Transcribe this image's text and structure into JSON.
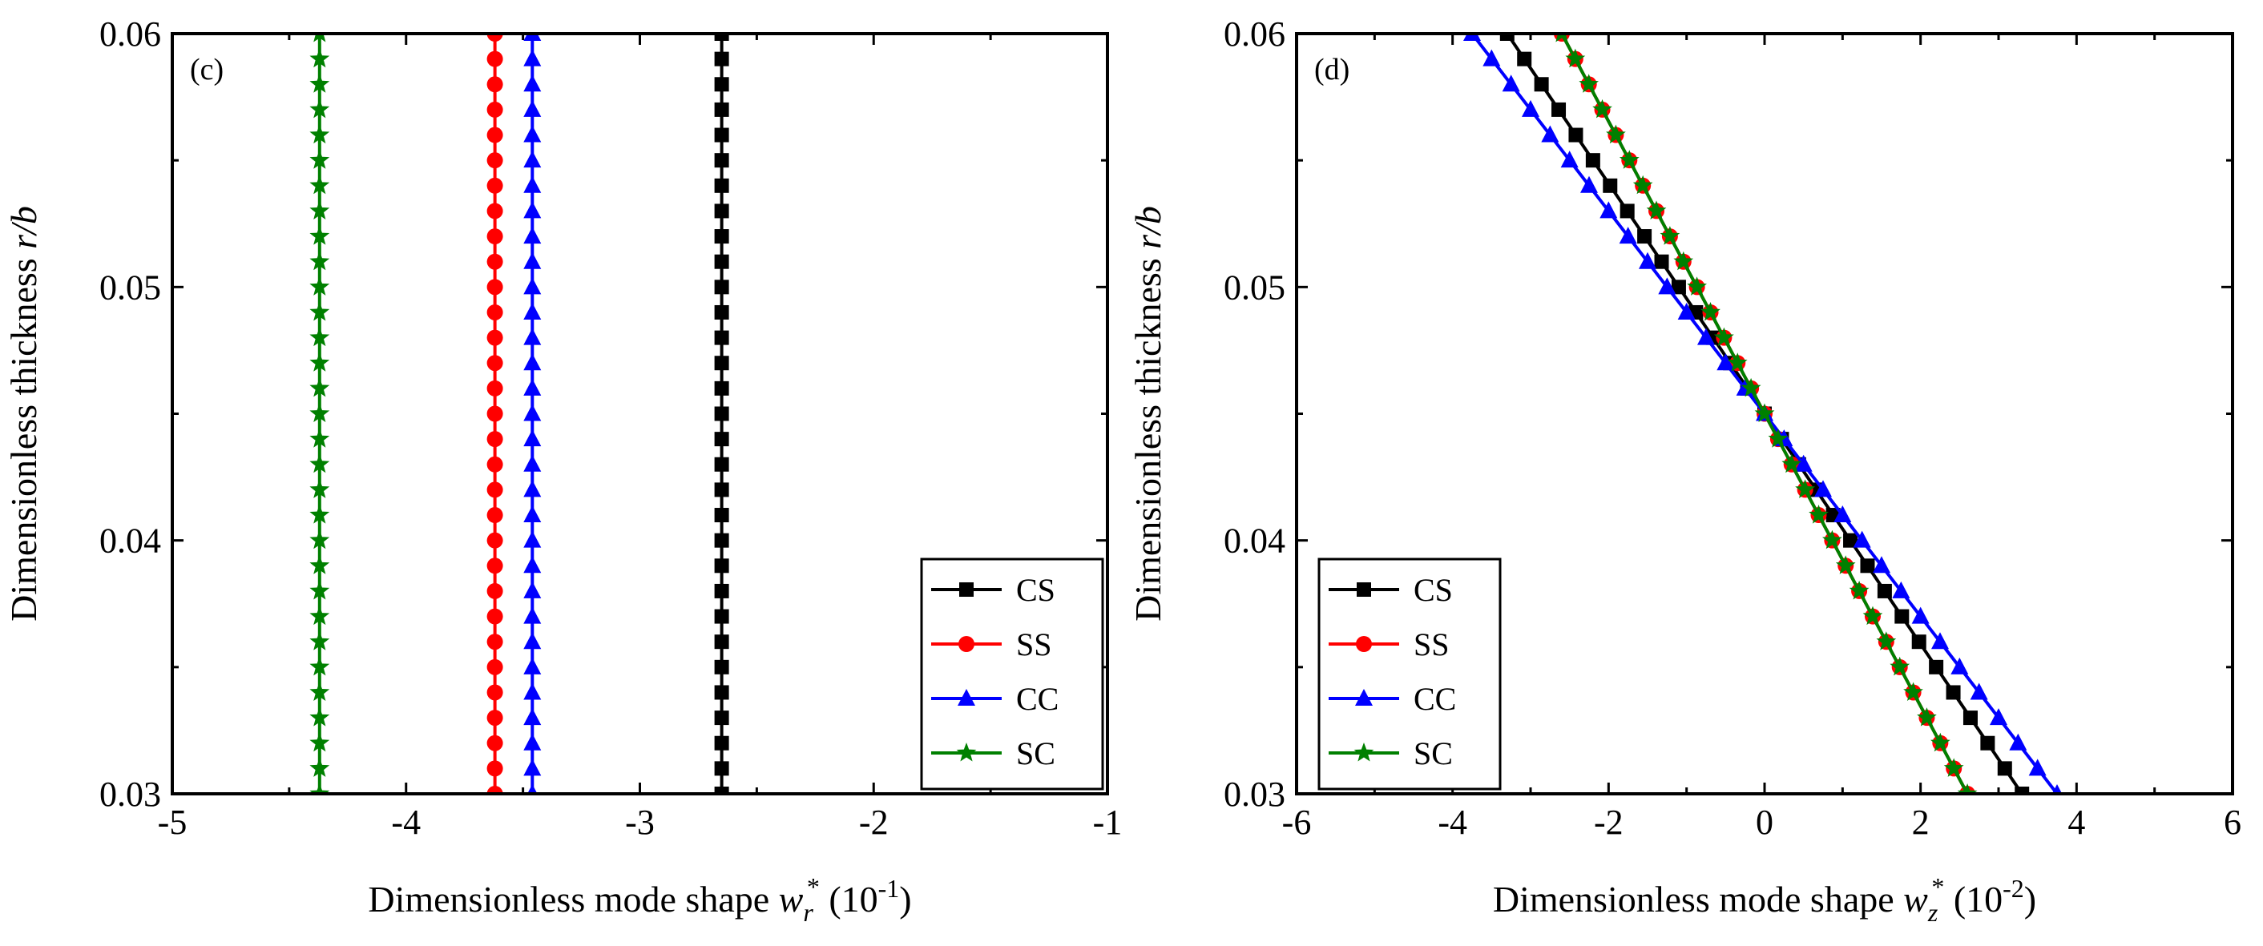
{
  "chart_data": [
    {
      "type": "line",
      "panel_label": "(c)",
      "xlabel": {
        "main": "Dimensionless mode shape ",
        "var": "w",
        "sub": "r",
        "sup": "*",
        "unit": " (10",
        "exp": "-1",
        "close": ")"
      },
      "ylabel": {
        "main": "Dimensionless thickness ",
        "var": "r/b"
      },
      "xlim": [
        -5,
        -1
      ],
      "ylim": [
        0.03,
        0.06
      ],
      "xticks": [
        -5,
        -4,
        -3,
        -2,
        -1
      ],
      "xtick_labels": [
        "-5",
        "-4",
        "-3",
        "-2",
        "-1"
      ],
      "yticks": [
        0.03,
        0.04,
        0.05,
        0.06
      ],
      "ytick_labels": [
        "0.03",
        "0.04",
        "0.05",
        "0.06"
      ],
      "legend_position": "bottom-right",
      "series": [
        {
          "name": "CS",
          "color": "#000000",
          "marker": "square",
          "x": [
            -2.65,
            -2.65
          ],
          "y": [
            0.03,
            0.06
          ]
        },
        {
          "name": "SS",
          "color": "#ff0000",
          "marker": "circle",
          "x": [
            -3.62,
            -3.62
          ],
          "y": [
            0.03,
            0.06
          ]
        },
        {
          "name": "CC",
          "color": "#0000ff",
          "marker": "triangle",
          "x": [
            -3.46,
            -3.46
          ],
          "y": [
            0.03,
            0.06
          ]
        },
        {
          "name": "SC",
          "color": "#008000",
          "marker": "star",
          "x": [
            -4.37,
            -4.37
          ],
          "y": [
            0.03,
            0.06
          ]
        }
      ]
    },
    {
      "type": "line",
      "panel_label": "(d)",
      "xlabel": {
        "main": "Dimensionless mode shape ",
        "var": "w",
        "sub": "z",
        "sup": "*",
        "unit": " (10",
        "exp": "-2",
        "close": ")"
      },
      "ylabel": {
        "main": "Dimensionless thickness ",
        "var": "r/b"
      },
      "xlim": [
        -6,
        6
      ],
      "ylim": [
        0.03,
        0.06
      ],
      "xticks": [
        -6,
        -4,
        -2,
        0,
        2,
        4,
        6
      ],
      "xtick_labels": [
        "-6",
        "-4",
        "-2",
        "0",
        "2",
        "4",
        "6"
      ],
      "yticks": [
        0.03,
        0.04,
        0.05,
        0.06
      ],
      "ytick_labels": [
        "0.03",
        "0.04",
        "0.05",
        "0.06"
      ],
      "legend_position": "bottom-left",
      "series": [
        {
          "name": "CS",
          "color": "#000000",
          "marker": "square",
          "x": [
            3.3,
            -3.3
          ],
          "y": [
            0.03,
            0.06
          ]
        },
        {
          "name": "SS",
          "color": "#ff0000",
          "marker": "circle",
          "x": [
            2.6,
            -2.6
          ],
          "y": [
            0.03,
            0.06
          ]
        },
        {
          "name": "CC",
          "color": "#0000ff",
          "marker": "triangle",
          "x": [
            3.75,
            -3.75
          ],
          "y": [
            0.03,
            0.06
          ]
        },
        {
          "name": "SC",
          "color": "#008000",
          "marker": "star",
          "x": [
            2.6,
            -2.6
          ],
          "y": [
            0.03,
            0.06
          ]
        }
      ]
    }
  ]
}
